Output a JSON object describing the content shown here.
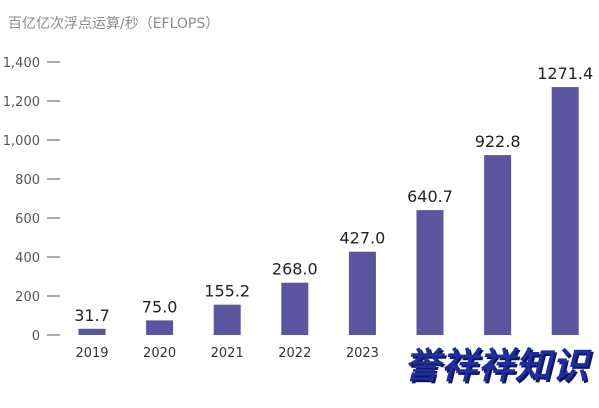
{
  "chart_data": {
    "type": "bar",
    "title": "",
    "unit_label": "百亿亿次浮点运算/秒（EFLOPS）",
    "xlabel": "",
    "ylabel": "",
    "categories": [
      "2019",
      "2020",
      "2021",
      "2022",
      "2023",
      "",
      "",
      ""
    ],
    "values": [
      31.7,
      75.0,
      155.2,
      268.0,
      427.0,
      640.7,
      922.8,
      1271.4
    ],
    "value_labels": [
      "31.7",
      "75.0",
      "155.2",
      "268.0",
      "427.0",
      "640.7",
      "922.8",
      "1271.4"
    ],
    "ylim": [
      0,
      1400
    ],
    "yticks": [
      0,
      200,
      400,
      600,
      800,
      1000,
      1200,
      1400
    ],
    "ytick_labels": [
      "0",
      "200",
      "400",
      "600",
      "800",
      "1,000",
      "1,200",
      "1,400"
    ],
    "grid": false,
    "bar_color": "#5b559f"
  },
  "watermark": {
    "text_part1": "誉祥",
    "text_part2": "祥知识"
  }
}
